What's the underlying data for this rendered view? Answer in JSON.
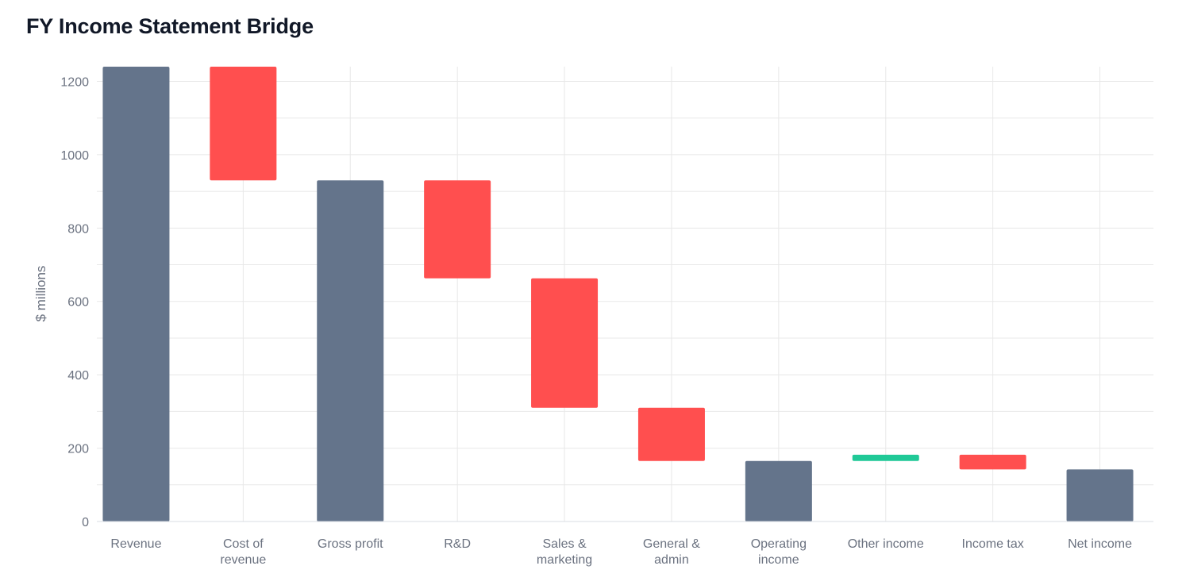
{
  "title": "FY Income Statement Bridge",
  "colors": {
    "total": "#64748b",
    "decrease": "#ff4f4f",
    "increase": "#20c997",
    "grid": "#e8e8e8",
    "axis_text": "#6b7280"
  },
  "chart_data": {
    "type": "bar",
    "subtype": "waterfall",
    "ylabel": "$ millions",
    "xlabel": "",
    "ylim": [
      0,
      1240
    ],
    "yticks": [
      0,
      200,
      400,
      600,
      800,
      1000,
      1200
    ],
    "grid": true,
    "categories": [
      [
        "Revenue"
      ],
      [
        "Cost of",
        "revenue"
      ],
      [
        "Gross profit"
      ],
      [
        "R&D"
      ],
      [
        "Sales &",
        "marketing"
      ],
      [
        "General &",
        "admin"
      ],
      [
        "Operating",
        "income"
      ],
      [
        "Other income"
      ],
      [
        "Income tax"
      ],
      [
        "Net income"
      ]
    ],
    "bars": [
      {
        "kind": "total",
        "start": 0,
        "end": 1240
      },
      {
        "kind": "decrease",
        "start": 1240,
        "end": 930
      },
      {
        "kind": "total",
        "start": 0,
        "end": 930
      },
      {
        "kind": "decrease",
        "start": 930,
        "end": 663
      },
      {
        "kind": "decrease",
        "start": 663,
        "end": 310
      },
      {
        "kind": "decrease",
        "start": 310,
        "end": 165
      },
      {
        "kind": "total",
        "start": 0,
        "end": 165
      },
      {
        "kind": "increase",
        "start": 165,
        "end": 182
      },
      {
        "kind": "decrease",
        "start": 182,
        "end": 142
      },
      {
        "kind": "total",
        "start": 0,
        "end": 142
      }
    ]
  }
}
